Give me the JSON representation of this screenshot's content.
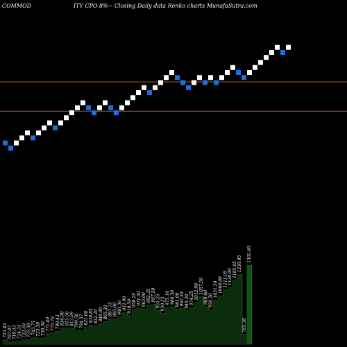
{
  "header": {
    "left": "COMMOD",
    "center": "ITY CPO 8%~  Closing Daily data  Renko  charts MunafaSutra.com"
  },
  "colors": {
    "background": "#000000",
    "up_brick": "#ffffff",
    "down_brick": "#1e6fd9",
    "level_line": "#b5551f",
    "volume_fill": "#0b2d0b",
    "volume_fill_last": "#0c5a14",
    "volume_outline": "#2e7d2e"
  },
  "chart_data": [
    {
      "type": "renko",
      "direction": [
        "down",
        "down",
        "up",
        "up",
        "up",
        "down",
        "up",
        "up",
        "up",
        "down",
        "up",
        "up",
        "up",
        "up",
        "up",
        "down",
        "down",
        "up",
        "up",
        "down",
        "down",
        "up",
        "up",
        "up",
        "up",
        "up",
        "down",
        "up",
        "up",
        "up",
        "up",
        "down",
        "down",
        "down",
        "up",
        "up",
        "down",
        "up",
        "down",
        "up",
        "up",
        "up",
        "down",
        "down",
        "up",
        "up",
        "up",
        "up",
        "up",
        "up",
        "down",
        "up"
      ],
      "brick_level": [
        0,
        -1,
        0,
        1,
        2,
        1,
        2,
        3,
        4,
        3,
        4,
        5,
        6,
        7,
        8,
        7,
        6,
        7,
        8,
        7,
        6,
        7,
        8,
        9,
        10,
        11,
        10,
        11,
        12,
        13,
        14,
        13,
        12,
        11,
        12,
        13,
        12,
        13,
        12,
        13,
        14,
        15,
        14,
        13,
        14,
        15,
        16,
        17,
        18,
        19,
        18,
        19
      ],
      "reference_levels": [
        12,
        7
      ]
    },
    {
      "type": "bar",
      "name": "volume",
      "values": [
        723.43,
        707.07,
        710.53,
        714.33,
        722.5,
        725.38,
        743.75,
        733.5,
        738.3,
        771.4,
        775.7,
        790.43,
        816.0,
        815.5,
        813.09,
        799.5,
        794.37,
        821.0,
        838.85,
        832.29,
        849.0,
        865.3,
        887.75,
        885.8,
        900.36,
        932.9,
        910.5,
        958.29,
        971.5,
        963.0,
        992.35,
        997.5,
        951.25,
        930.25,
        975.1,
        980.5,
        961.0,
        967.5,
        949.3,
        974.25,
        1012.9,
        1057.5,
        980.0,
        956.5,
        1031.5,
        1066.0,
        1111.05,
        1130.0,
        1185.05,
        1230.05,
        765.3,
        1302.6
      ],
      "labels": [
        "723.43",
        "707.07",
        "710.53",
        "714.33",
        "722.50",
        "725.38",
        "743.75",
        "733.50",
        "738.30",
        "771.40",
        "775.70",
        "790.43",
        "816.00",
        "815.50",
        "813.09",
        "799.50",
        "794.37",
        "821.00",
        "838.85",
        "832.29",
        "849.00",
        "865.30",
        "887.75",
        "885.80",
        "900.36",
        "932.90",
        "910.50",
        "958.29",
        "971.50",
        "963.00",
        "992.35",
        "997.50",
        "951.25",
        "930.25",
        "975.10",
        "980.50",
        "961.00",
        "967.50",
        "949.30",
        "974.25",
        "1012.90",
        "1057.50",
        "980.00",
        "956.50",
        "1031.50",
        "1066.00",
        "1111.05",
        "1130.00",
        "1185.05",
        "1230.05",
        "765.30",
        "1302.60"
      ]
    }
  ]
}
